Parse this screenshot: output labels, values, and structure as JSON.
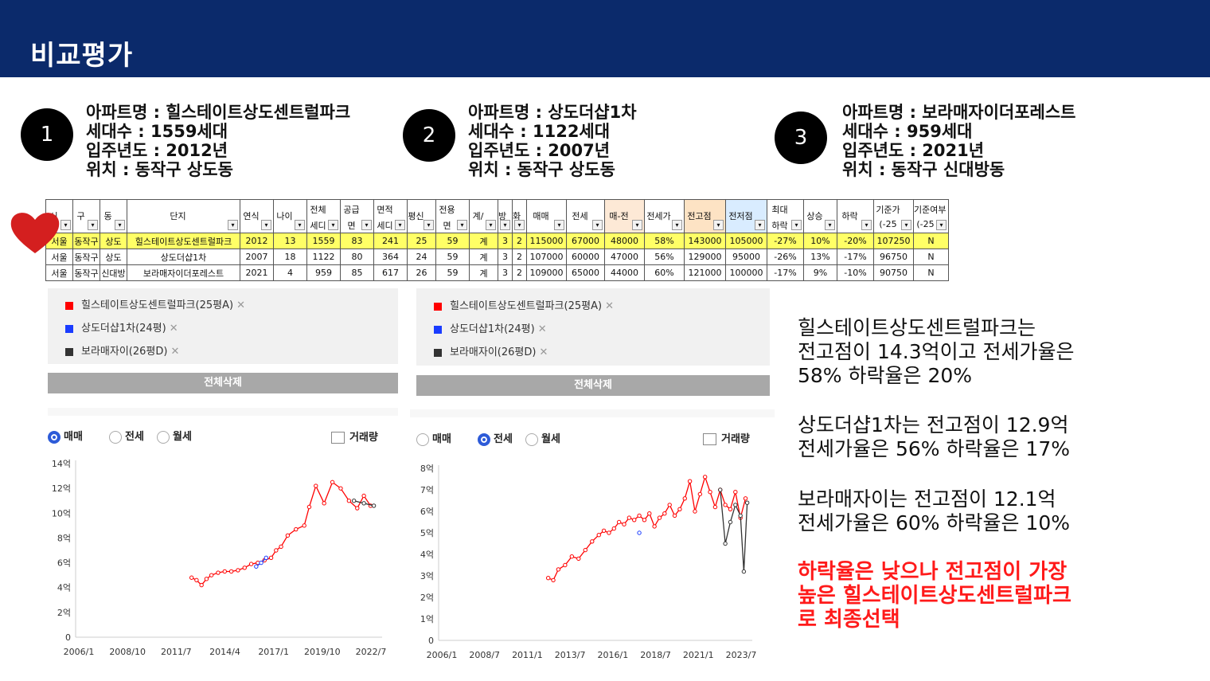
{
  "header": {
    "title": "비교평가"
  },
  "cards": [
    {
      "num": "1",
      "name": "아파트명 : 힐스테이트상도센트럴파크",
      "units": "세대수 : 1559세대",
      "year": "입주년도 : 2012년",
      "loc": "위치 : 동작구 상도동"
    },
    {
      "num": "2",
      "name": "아파트명 : 상도더샵1차",
      "units": "세대수 : 1122세대",
      "year": "입주년도 : 2007년",
      "loc": "위치 : 동작구 상도동"
    },
    {
      "num": "3",
      "name": "아파트명 : 보라매자이더포레스트",
      "units": "세대수 : 959세대",
      "year": "입주년도 : 2021년",
      "loc": "위치 : 동작구 신대방동"
    }
  ],
  "table": {
    "headers": [
      {
        "t1": "시",
        "t2": ""
      },
      {
        "t1": "구",
        "t2": ""
      },
      {
        "t1": "동",
        "t2": ""
      },
      {
        "t1": "단지",
        "t2": ""
      },
      {
        "t1": "연식",
        "t2": ""
      },
      {
        "t1": "나이",
        "t2": ""
      },
      {
        "t1": "전체",
        "t2": "세디"
      },
      {
        "t1": "공급",
        "t2": "면"
      },
      {
        "t1": "면적",
        "t2": "세디"
      },
      {
        "t1": "평신",
        "t2": ""
      },
      {
        "t1": "전용",
        "t2": "면"
      },
      {
        "t1": "계/",
        "t2": ""
      },
      {
        "t1": "방",
        "t2": ""
      },
      {
        "t1": "화",
        "t2": ""
      },
      {
        "t1": "매매",
        "t2": ""
      },
      {
        "t1": "전세",
        "t2": ""
      },
      {
        "t1": "매-전",
        "t2": ""
      },
      {
        "t1": "전세가",
        "t2": ""
      },
      {
        "t1": "전고점",
        "t2": ""
      },
      {
        "t1": "전저점",
        "t2": ""
      },
      {
        "t1": "최대",
        "t2": "하락"
      },
      {
        "t1": "상승",
        "t2": ""
      },
      {
        "t1": "하락",
        "t2": ""
      },
      {
        "t1": "기준가",
        "t2": "(-25"
      },
      {
        "t1": "기준여부",
        "t2": "(-25"
      }
    ],
    "rows": [
      [
        "서울",
        "동작구",
        "상도",
        "힐스테이트상도센트럴파크",
        "2012",
        "13",
        "1559",
        "83",
        "241",
        "25",
        "59",
        "계",
        "3",
        "2",
        "115000",
        "67000",
        "48000",
        "58%",
        "143000",
        "105000",
        "-27%",
        "10%",
        "-20%",
        "107250",
        "N"
      ],
      [
        "서울",
        "동작구",
        "상도",
        "상도더샵1차",
        "2007",
        "18",
        "1122",
        "80",
        "364",
        "24",
        "59",
        "계",
        "3",
        "2",
        "107000",
        "60000",
        "47000",
        "56%",
        "129000",
        "95000",
        "-26%",
        "13%",
        "-17%",
        "96750",
        "N"
      ],
      [
        "서울",
        "동작구",
        "신대방",
        "보라매자이더포레스트",
        "2021",
        "4",
        "959",
        "85",
        "617",
        "26",
        "59",
        "계",
        "3",
        "2",
        "109000",
        "65000",
        "44000",
        "60%",
        "121000",
        "100000",
        "-17%",
        "9%",
        "-10%",
        "90750",
        "N"
      ]
    ]
  },
  "panels": [
    {
      "legend": [
        {
          "label": "힐스테이트상도센트럴파크(25평A)",
          "color": "#ff0000"
        },
        {
          "label": "상도더샵1차(24평)",
          "color": "#1a3cff"
        },
        {
          "label": "보라매자이(26평D)",
          "color": "#333333"
        }
      ],
      "close": "✕",
      "delete_label": "전체삭제",
      "radios": [
        {
          "label": "매매",
          "on": true
        },
        {
          "label": "전세",
          "on": false
        },
        {
          "label": "월세",
          "on": false
        }
      ],
      "volume_label": "거래량"
    },
    {
      "legend": [
        {
          "label": "힐스테이트상도센트럴파크(25평A)",
          "color": "#ff0000"
        },
        {
          "label": "상도더샵1차(24평)",
          "color": "#1a3cff"
        },
        {
          "label": "보라매자이(26평D)",
          "color": "#333333"
        }
      ],
      "close": "✕",
      "delete_label": "전체삭제",
      "radios": [
        {
          "label": "매매",
          "on": false
        },
        {
          "label": "전세",
          "on": true
        },
        {
          "label": "월세",
          "on": false
        }
      ],
      "volume_label": "거래량"
    }
  ],
  "chart_data": [
    {
      "type": "line",
      "title": "매매",
      "yticks": [
        "0",
        "2억",
        "4억",
        "6억",
        "8억",
        "10억",
        "12억",
        "14억"
      ],
      "ylim": [
        0,
        14
      ],
      "xticks": [
        "2006/1",
        "2008/10",
        "2011/7",
        "2014/4",
        "2017/1",
        "2019/10",
        "2022/7"
      ],
      "xlim": [
        2006.0,
        2024.5
      ],
      "series": [
        {
          "name": "힐스테이트상도센트럴파크(25평A)",
          "color": "#ff0000",
          "x": [
            2013.0,
            2013.3,
            2013.6,
            2013.9,
            2014.2,
            2014.6,
            2015.0,
            2015.4,
            2015.8,
            2016.2,
            2016.6,
            2017.0,
            2017.4,
            2017.8,
            2018.1,
            2018.4,
            2018.8,
            2019.3,
            2019.8,
            2020.1,
            2020.5,
            2021.0,
            2021.5,
            2022.0,
            2022.5,
            2023.0,
            2023.4,
            2023.8
          ],
          "y": [
            4.8,
            4.6,
            4.2,
            4.7,
            5.0,
            5.2,
            5.3,
            5.3,
            5.4,
            5.6,
            5.9,
            6.0,
            6.2,
            6.4,
            7.0,
            7.3,
            8.2,
            8.7,
            9.0,
            10.5,
            12.2,
            10.8,
            12.5,
            12.0,
            11.0,
            10.4,
            11.4,
            10.6
          ]
        },
        {
          "name": "상도더샵1차(24평)",
          "color": "#1a3cff",
          "x": [
            2016.9,
            2017.2,
            2017.5
          ],
          "y": [
            5.7,
            6.0,
            6.4
          ]
        },
        {
          "name": "보라매자이(26평D)",
          "color": "#333333",
          "x": [
            2022.8,
            2023.4,
            2024.0
          ],
          "y": [
            11.0,
            10.8,
            10.6
          ]
        }
      ]
    },
    {
      "type": "line",
      "title": "전세",
      "yticks": [
        "0",
        "1억",
        "2억",
        "3억",
        "4억",
        "5억",
        "6억",
        "7억",
        "8억"
      ],
      "ylim": [
        0,
        8
      ],
      "xticks": [
        "2006/1",
        "2008/7",
        "2011/1",
        "2013/7",
        "2016/1",
        "2018/7",
        "2021/1",
        "2023/7"
      ],
      "xlim": [
        2006.0,
        2024.6
      ],
      "series": [
        {
          "name": "힐스테이트상도센트럴파크(25평A)",
          "color": "#ff0000",
          "x": [
            2012.5,
            2012.8,
            2013.1,
            2013.5,
            2013.9,
            2014.3,
            2014.7,
            2015.1,
            2015.5,
            2015.8,
            2016.1,
            2016.4,
            2016.7,
            2017.0,
            2017.3,
            2017.6,
            2017.9,
            2018.2,
            2018.5,
            2018.8,
            2019.1,
            2019.4,
            2019.7,
            2020.0,
            2020.3,
            2020.6,
            2020.9,
            2021.2,
            2021.5,
            2021.8,
            2022.1,
            2022.4,
            2022.7,
            2023.0,
            2023.3,
            2023.6,
            2023.9,
            2024.2
          ],
          "y": [
            2.9,
            2.8,
            3.3,
            3.5,
            3.9,
            3.8,
            4.2,
            4.6,
            4.9,
            5.1,
            5.0,
            5.2,
            5.5,
            5.4,
            5.7,
            5.6,
            5.8,
            5.6,
            5.9,
            5.3,
            5.7,
            5.9,
            6.3,
            5.8,
            6.1,
            6.6,
            7.4,
            6.0,
            6.8,
            7.6,
            6.9,
            6.2,
            7.0,
            6.3,
            6.1,
            6.9,
            5.7,
            6.6
          ]
        },
        {
          "name": "상도더샵1차(24평)",
          "color": "#1a3cff",
          "x": [
            2017.9
          ],
          "y": [
            5.0
          ]
        },
        {
          "name": "보라매자이(26평D)",
          "color": "#333333",
          "x": [
            2022.7,
            2023.0,
            2023.3,
            2023.6,
            2023.9,
            2024.1,
            2024.3
          ],
          "y": [
            7.0,
            4.5,
            5.5,
            6.3,
            5.8,
            3.2,
            6.4
          ]
        }
      ]
    }
  ],
  "summary": [
    [
      "힐스테이트상도센트럴파크는",
      "전고점이 14.3억이고 전세가율은",
      "58% 하락율은 20%"
    ],
    [
      "상도더샵1차는 전고점이 12.9억",
      "전세가율은 56% 하락율은 17%"
    ],
    [
      "보라매자이는 전고점이 12.1억",
      "전세가율은 60% 하락율은 10%"
    ]
  ],
  "conclusion": [
    "하락율은 낮으나 전고점이 가장",
    "높은 힐스테이트상도센트럴파크",
    "로 최종선택"
  ],
  "colors": {
    "header_bg": "#0b2a6b",
    "highlight_row": "#ffff66",
    "conclusion": "#ff1a1a"
  }
}
